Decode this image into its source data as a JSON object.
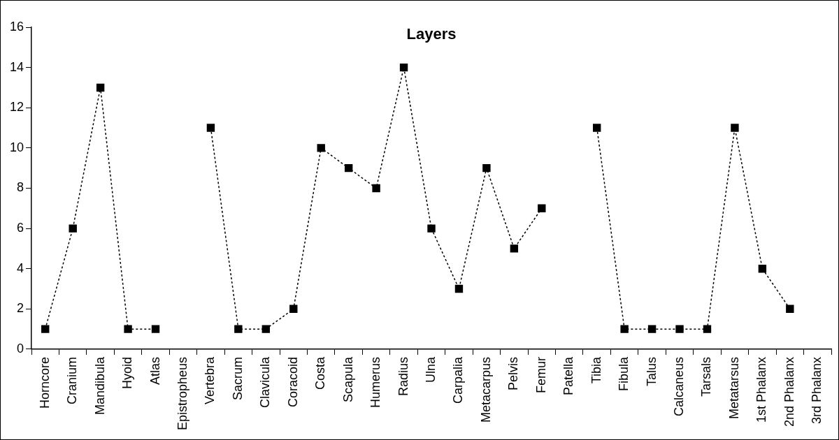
{
  "chart_data": {
    "type": "line",
    "title": "Layers",
    "categories": [
      "Horncore",
      "Cranium",
      "Mandibula",
      "Hyoid",
      "Atlas",
      "Epistropheus",
      "Vertebra",
      "Sacrum",
      "Clavicula",
      "Coracoid",
      "Costa",
      "Scapula",
      "Humerus",
      "Radius",
      "Ulna",
      "Carpalia",
      "Metacarpus",
      "Pelvis",
      "Femur",
      "Patella",
      "Tibia",
      "Fibula",
      "Talus",
      "Calcaneus",
      "Tarsals",
      "Metatarsus",
      "1st Phalanx",
      "2nd Phalanx",
      "3rd Phalanx"
    ],
    "series": [
      {
        "color": "#000000",
        "values": [
          1,
          6,
          13,
          1,
          1,
          null,
          11,
          1,
          1,
          2,
          10,
          9,
          8,
          14,
          6,
          3,
          9,
          5,
          7,
          null,
          11,
          1,
          1,
          1,
          1,
          11,
          4,
          2,
          null
        ]
      }
    ],
    "ylim": [
      0,
      16
    ],
    "yticks": [
      0,
      2,
      4,
      6,
      8,
      10,
      12,
      14,
      16
    ],
    "grid": false,
    "legend": false,
    "marker": "square",
    "line_style": "dotted"
  }
}
